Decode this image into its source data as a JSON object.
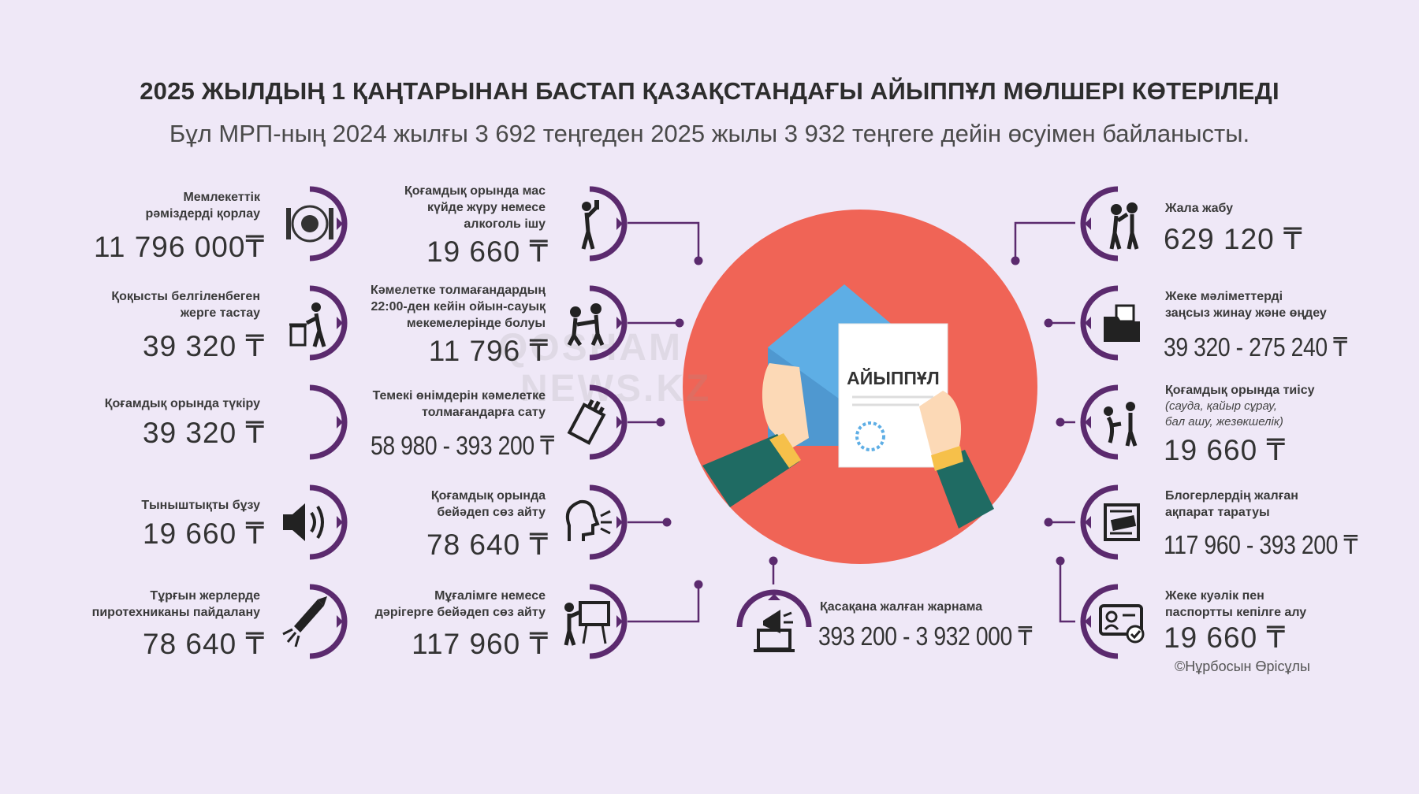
{
  "header": {
    "title": "2025 ЖЫЛДЫҢ 1 ҚАҢТАРЫНАН БАСТАП ҚАЗАҚСТАНДАҒЫ АЙЫППҰЛ МӨЛШЕРІ КӨТЕРІЛЕДІ",
    "subtitle": "Бұл МРП-ның 2024 жылғы 3 692 теңгеден 2025 жылы 3 932 теңгеге дейін өсуімен байланысты."
  },
  "left_col": [
    {
      "label": "Мемлекеттік\nрәміздерді қорлау",
      "amount": "11 796 000₸",
      "icon": "kazakhstan-emblem-icon"
    },
    {
      "label": "Қоқысты белгіленбеген\nжерге тастау",
      "amount": "39 320 ₸",
      "icon": "trash-dumping-icon"
    },
    {
      "label": "Қоғамдық орында түкіру",
      "amount": "39 320 ₸",
      "icon": "spitting-icon"
    },
    {
      "label": "Тыныштықты бұзу",
      "amount": "19 660 ₸",
      "icon": "loud-speaker-icon"
    },
    {
      "label": "Тұрғын жерлерде\nпиротехниканы пайдалану",
      "amount": "78 640 ₸",
      "icon": "firework-rocket-icon"
    }
  ],
  "mid_col": [
    {
      "label": "Қоғамдық орында мас\nкүйде жүру немесе\nалкоголь ішу",
      "amount": "19 660 ₸",
      "icon": "drinking-person-icon"
    },
    {
      "label": "Кәмелетке толмағандардың\n22:00-ден кейін ойын-сауық\nмекемелерінде болуы",
      "amount": "11 796 ₸",
      "icon": "children-icon"
    },
    {
      "label": "Темекі өнімдерін кәмелетке\nтолмағандарға сату",
      "amount": "58 980 - 393 200 ₸",
      "icon": "cigarette-pack-icon"
    },
    {
      "label": "Қоғамдық орында\nбейәдеп сөз айту",
      "amount": "78 640 ₸",
      "icon": "shouting-head-icon"
    },
    {
      "label": "Мұғалімге немесе\nдәрігерге бейәдеп сөз айту",
      "amount": "117 960 ₸",
      "icon": "teacher-board-icon"
    }
  ],
  "right_col": [
    {
      "label": "Жала жабу",
      "amount": "629 120 ₸",
      "icon": "whispering-people-icon"
    },
    {
      "label": "Жеке мәліметтерді\nзаңсыз жинау және өңдеу",
      "amount": "39 320 - 275 240 ₸",
      "icon": "folder-icon"
    },
    {
      "label": "Қоғамдық орында тиісу",
      "note": "(саудa, қайыр сұрау,\nбал ашу, жезөкшелік)",
      "amount": "19 660 ₸",
      "icon": "harassment-icon"
    },
    {
      "label": "Блогерлердің жалған\nақпарат таратуы",
      "amount": "117 960 - 393 200 ₸",
      "icon": "fake-news-icon"
    },
    {
      "label": "Жеке куәлік пен\nпаспортты кепілге алу",
      "amount": "19 660 ₸",
      "icon": "id-card-icon"
    }
  ],
  "bottom_center": {
    "label": "Қасақана жалған жарнама",
    "amount": "393 200 - 3 932 000 ₸",
    "icon": "megaphone-laptop-icon"
  },
  "hero": {
    "paper_text": "АЙЫППҰЛ",
    "icon": "envelope-fine-letter-icon"
  },
  "watermark": {
    "line1": "QOSHAM",
    "line2": "NEWS.KZ"
  },
  "copyright": "©Нұрбосын Өрісұлы",
  "colors": {
    "background": "#efe8f7",
    "accent": "#5b2a6e",
    "circle": "#f06456",
    "envelope": "#5eaee5"
  }
}
